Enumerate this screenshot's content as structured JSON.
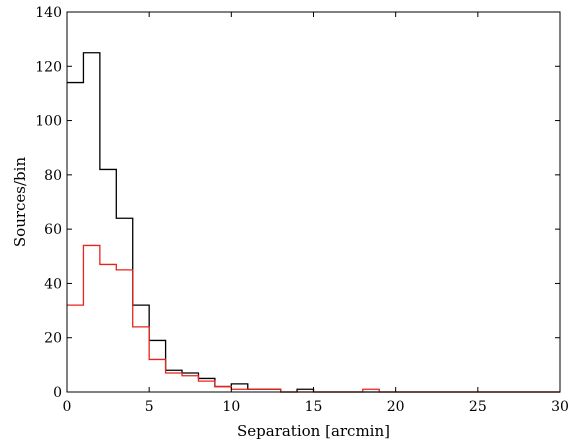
{
  "chart_data": {
    "type": "histogram",
    "title": "",
    "xlabel": "Separation [arcmin]",
    "ylabel": "Sources/bin",
    "xlim": [
      0,
      30
    ],
    "ylim": [
      0,
      140
    ],
    "xticks": [
      0,
      5,
      10,
      15,
      20,
      25,
      30
    ],
    "yticks": [
      0,
      20,
      40,
      60,
      80,
      100,
      120,
      140
    ],
    "xtick_labels": [
      "0",
      "5",
      "10",
      "15",
      "20",
      "25",
      "30"
    ],
    "ytick_labels": [
      "0",
      "20",
      "40",
      "60",
      "80",
      "100",
      "120",
      "140"
    ],
    "grid": false,
    "bin_edges": [
      0,
      1,
      2,
      3,
      4,
      5,
      6,
      7,
      8,
      9,
      10,
      11,
      12,
      13,
      14,
      15,
      16,
      17,
      18,
      19,
      20,
      21,
      22,
      23,
      24,
      25,
      26,
      27,
      28,
      29,
      30
    ],
    "series": [
      {
        "color": "#000000",
        "values": [
          114,
          125,
          82,
          64,
          32,
          19,
          8,
          7,
          5,
          2,
          3,
          1,
          1,
          0,
          1,
          0,
          0,
          0,
          0,
          0,
          0,
          0,
          0,
          0,
          0,
          0,
          0,
          0,
          0,
          0
        ]
      },
      {
        "color": "#e8231c",
        "values": [
          32,
          54,
          47,
          45,
          24,
          12,
          7,
          6,
          4,
          2,
          1,
          1,
          1,
          0,
          0,
          0,
          0,
          0,
          1,
          0,
          0,
          0,
          0,
          0,
          0,
          0,
          0,
          0,
          0,
          0
        ]
      }
    ]
  }
}
